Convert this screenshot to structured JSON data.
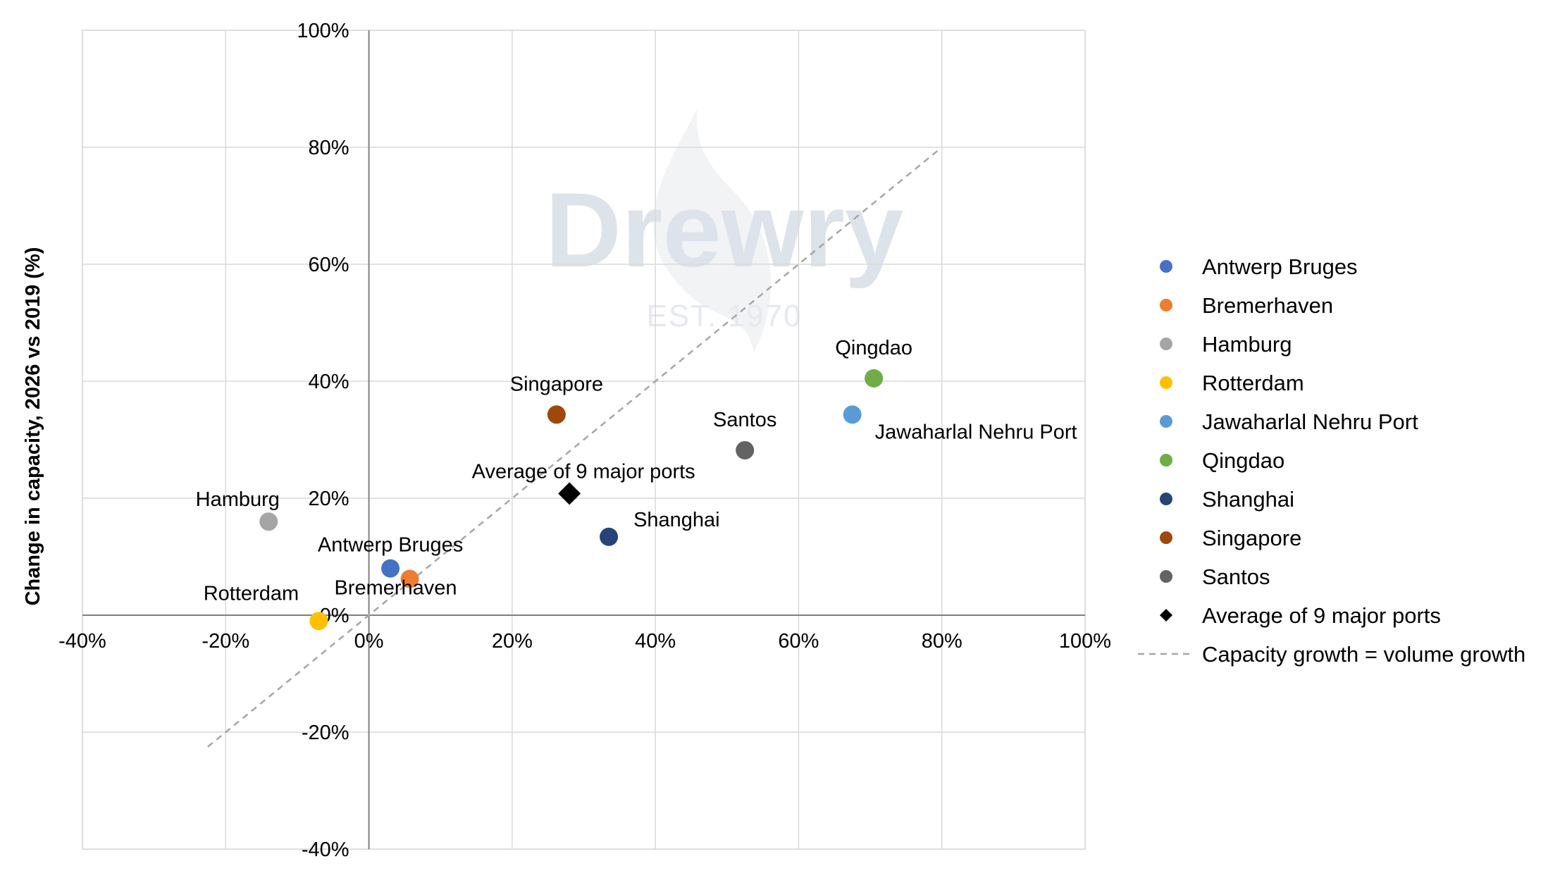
{
  "watermark": {
    "brand": "Drewry",
    "est": "EST. 1970"
  },
  "chart_data": {
    "type": "scatter",
    "xlabel": "",
    "ylabel": "Change in capacity, 2026 vs 2019 (%)",
    "xlim": [
      -40,
      100
    ],
    "ylim": [
      -40,
      100
    ],
    "x_ticks": [
      -40,
      -20,
      0,
      20,
      40,
      60,
      80,
      100
    ],
    "y_ticks": [
      -40,
      -20,
      0,
      20,
      40,
      60,
      80,
      100
    ],
    "tick_suffix": "%",
    "grid": true,
    "legend_position": "right",
    "series": [
      {
        "name": "Antwerp Bruges",
        "x": 3,
        "y": 8,
        "color": "#4472c4",
        "marker": "circle",
        "label": "Antwerp Bruges"
      },
      {
        "name": "Bremerhaven",
        "x": 5.7,
        "y": 6.2,
        "color": "#ed7d31",
        "marker": "circle",
        "label": "Bremerhaven"
      },
      {
        "name": "Hamburg",
        "x": -14,
        "y": 16,
        "color": "#a5a5a5",
        "marker": "circle",
        "label": "Hamburg"
      },
      {
        "name": "Rotterdam",
        "x": -7,
        "y": -1,
        "color": "#ffc000",
        "marker": "circle",
        "label": "Rotterdam"
      },
      {
        "name": "Jawaharlal Nehru Port",
        "x": 67.5,
        "y": 34.3,
        "color": "#5b9bd5",
        "marker": "circle",
        "label": "Jawaharlal Nehru Port"
      },
      {
        "name": "Qingdao",
        "x": 70.5,
        "y": 40.5,
        "color": "#70ad47",
        "marker": "circle",
        "label": "Qingdao"
      },
      {
        "name": "Shanghai",
        "x": 33.5,
        "y": 13.4,
        "color": "#264478",
        "marker": "circle",
        "label": "Shanghai"
      },
      {
        "name": "Singapore",
        "x": 26.2,
        "y": 34.3,
        "color": "#9e480e",
        "marker": "circle",
        "label": "Singapore"
      },
      {
        "name": "Santos",
        "x": 52.5,
        "y": 28.2,
        "color": "#636363",
        "marker": "circle",
        "label": "Santos"
      },
      {
        "name": "Average of 9 major ports",
        "x": 28,
        "y": 20.8,
        "color": "#000000",
        "marker": "diamond",
        "label": "Average of 9 major ports"
      }
    ],
    "reference_line": {
      "name": "Capacity growth = volume growth",
      "x": [
        -22.5,
        79.5
      ],
      "y": [
        -22.5,
        79.5
      ],
      "color": "#a6a6a6",
      "style": "dashed"
    }
  }
}
